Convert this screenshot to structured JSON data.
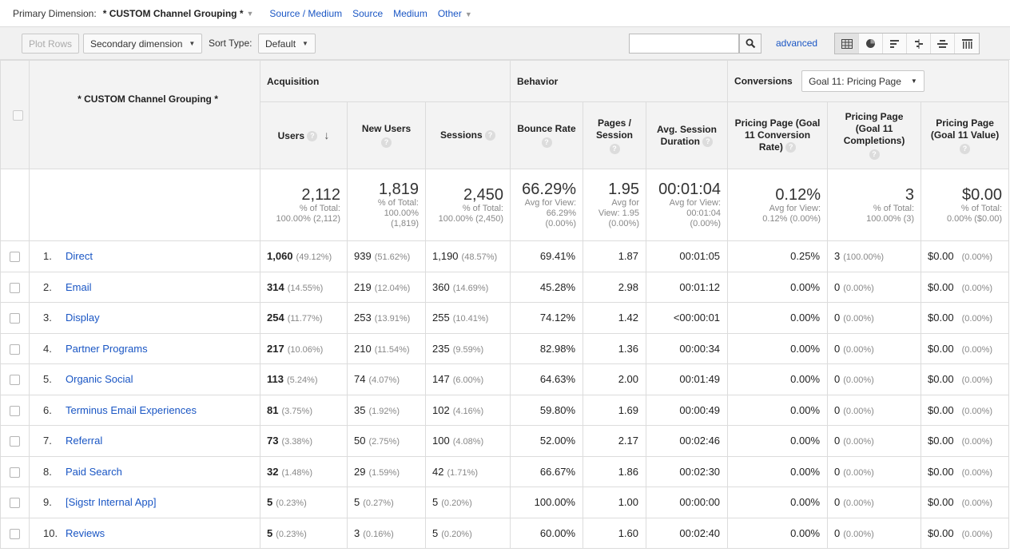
{
  "primary": {
    "label": "Primary Dimension:",
    "current": "* CUSTOM Channel Grouping *",
    "links": [
      "Source / Medium",
      "Source",
      "Medium",
      "Other"
    ]
  },
  "toolbar": {
    "plot_rows": "Plot Rows",
    "secondary_dimension": "Secondary dimension",
    "sort_type_label": "Sort Type:",
    "sort_type_value": "Default",
    "search_placeholder": "",
    "advanced": "advanced"
  },
  "table": {
    "dimension_header": "* CUSTOM Channel Grouping *",
    "groups": {
      "acquisition": "Acquisition",
      "behavior": "Behavior",
      "conversions": "Conversions",
      "goal_select": "Goal 11: Pricing Page"
    },
    "columns": [
      "Users",
      "New Users",
      "Sessions",
      "Bounce Rate",
      "Pages / Session",
      "Avg. Session Duration",
      "Pricing Page (Goal 11 Conversion Rate)",
      "Pricing Page (Goal 11 Completions)",
      "Pricing Page (Goal 11 Value)"
    ],
    "totals": [
      {
        "value": "2,112",
        "l1": "% of Total:",
        "l2": "100.00% (2,112)",
        "l3": ""
      },
      {
        "value": "1,819",
        "l1": "% of Total:",
        "l2": "100.00%",
        "l3": "(1,819)"
      },
      {
        "value": "2,450",
        "l1": "% of Total:",
        "l2": "100.00% (2,450)",
        "l3": ""
      },
      {
        "value": "66.29%",
        "l1": "Avg for View:",
        "l2": "66.29%",
        "l3": "(0.00%)"
      },
      {
        "value": "1.95",
        "l1": "Avg for",
        "l2": "View: 1.95",
        "l3": "(0.00%)"
      },
      {
        "value": "00:01:04",
        "l1": "Avg for View:",
        "l2": "00:01:04",
        "l3": "(0.00%)"
      },
      {
        "value": "0.12%",
        "l1": "Avg for View:",
        "l2": "0.12% (0.00%)",
        "l3": ""
      },
      {
        "value": "3",
        "l1": "% of Total:",
        "l2": "100.00% (3)",
        "l3": ""
      },
      {
        "value": "$0.00",
        "l1": "% of Total:",
        "l2": "0.00% ($0.00)",
        "l3": ""
      }
    ],
    "rows": [
      {
        "idx": "1.",
        "name": "Direct",
        "users": "1,060",
        "users_pct": "(49.12%)",
        "new_users": "939",
        "new_users_pct": "(51.62%)",
        "sessions": "1,190",
        "sessions_pct": "(48.57%)",
        "bounce": "69.41%",
        "pages": "1.87",
        "duration": "00:01:05",
        "conv_rate": "0.25%",
        "completions": "3",
        "completions_pct": "(100.00%)",
        "value": "$0.00",
        "value_pct": "(0.00%)"
      },
      {
        "idx": "2.",
        "name": "Email",
        "users": "314",
        "users_pct": "(14.55%)",
        "new_users": "219",
        "new_users_pct": "(12.04%)",
        "sessions": "360",
        "sessions_pct": "(14.69%)",
        "bounce": "45.28%",
        "pages": "2.98",
        "duration": "00:01:12",
        "conv_rate": "0.00%",
        "completions": "0",
        "completions_pct": "(0.00%)",
        "value": "$0.00",
        "value_pct": "(0.00%)"
      },
      {
        "idx": "3.",
        "name": "Display",
        "users": "254",
        "users_pct": "(11.77%)",
        "new_users": "253",
        "new_users_pct": "(13.91%)",
        "sessions": "255",
        "sessions_pct": "(10.41%)",
        "bounce": "74.12%",
        "pages": "1.42",
        "duration": "<00:00:01",
        "conv_rate": "0.00%",
        "completions": "0",
        "completions_pct": "(0.00%)",
        "value": "$0.00",
        "value_pct": "(0.00%)"
      },
      {
        "idx": "4.",
        "name": "Partner Programs",
        "users": "217",
        "users_pct": "(10.06%)",
        "new_users": "210",
        "new_users_pct": "(11.54%)",
        "sessions": "235",
        "sessions_pct": "(9.59%)",
        "bounce": "82.98%",
        "pages": "1.36",
        "duration": "00:00:34",
        "conv_rate": "0.00%",
        "completions": "0",
        "completions_pct": "(0.00%)",
        "value": "$0.00",
        "value_pct": "(0.00%)"
      },
      {
        "idx": "5.",
        "name": "Organic Social",
        "users": "113",
        "users_pct": "(5.24%)",
        "new_users": "74",
        "new_users_pct": "(4.07%)",
        "sessions": "147",
        "sessions_pct": "(6.00%)",
        "bounce": "64.63%",
        "pages": "2.00",
        "duration": "00:01:49",
        "conv_rate": "0.00%",
        "completions": "0",
        "completions_pct": "(0.00%)",
        "value": "$0.00",
        "value_pct": "(0.00%)"
      },
      {
        "idx": "6.",
        "name": "Terminus Email Experiences",
        "users": "81",
        "users_pct": "(3.75%)",
        "new_users": "35",
        "new_users_pct": "(1.92%)",
        "sessions": "102",
        "sessions_pct": "(4.16%)",
        "bounce": "59.80%",
        "pages": "1.69",
        "duration": "00:00:49",
        "conv_rate": "0.00%",
        "completions": "0",
        "completions_pct": "(0.00%)",
        "value": "$0.00",
        "value_pct": "(0.00%)"
      },
      {
        "idx": "7.",
        "name": "Referral",
        "users": "73",
        "users_pct": "(3.38%)",
        "new_users": "50",
        "new_users_pct": "(2.75%)",
        "sessions": "100",
        "sessions_pct": "(4.08%)",
        "bounce": "52.00%",
        "pages": "2.17",
        "duration": "00:02:46",
        "conv_rate": "0.00%",
        "completions": "0",
        "completions_pct": "(0.00%)",
        "value": "$0.00",
        "value_pct": "(0.00%)"
      },
      {
        "idx": "8.",
        "name": "Paid Search",
        "users": "32",
        "users_pct": "(1.48%)",
        "new_users": "29",
        "new_users_pct": "(1.59%)",
        "sessions": "42",
        "sessions_pct": "(1.71%)",
        "bounce": "66.67%",
        "pages": "1.86",
        "duration": "00:02:30",
        "conv_rate": "0.00%",
        "completions": "0",
        "completions_pct": "(0.00%)",
        "value": "$0.00",
        "value_pct": "(0.00%)"
      },
      {
        "idx": "9.",
        "name": "[Sigstr Internal App]",
        "users": "5",
        "users_pct": "(0.23%)",
        "new_users": "5",
        "new_users_pct": "(0.27%)",
        "sessions": "5",
        "sessions_pct": "(0.20%)",
        "bounce": "100.00%",
        "pages": "1.00",
        "duration": "00:00:00",
        "conv_rate": "0.00%",
        "completions": "0",
        "completions_pct": "(0.00%)",
        "value": "$0.00",
        "value_pct": "(0.00%)"
      },
      {
        "idx": "10.",
        "name": "Reviews",
        "users": "5",
        "users_pct": "(0.23%)",
        "new_users": "3",
        "new_users_pct": "(0.16%)",
        "sessions": "5",
        "sessions_pct": "(0.20%)",
        "bounce": "60.00%",
        "pages": "1.60",
        "duration": "00:02:40",
        "conv_rate": "0.00%",
        "completions": "0",
        "completions_pct": "(0.00%)",
        "value": "$0.00",
        "value_pct": "(0.00%)"
      }
    ]
  },
  "icons": {
    "search": "magnifier-icon",
    "views": [
      "table-view-icon",
      "pie-view-icon",
      "performance-view-icon",
      "comparison-view-icon",
      "term-cloud-view-icon",
      "pivot-view-icon"
    ],
    "help": "help-icon",
    "sort": "sort-descending-icon"
  },
  "colors": {
    "link": "#1a56c4",
    "header_bg": "#f3f3f3",
    "toolbar_bg": "#f1f1f1",
    "muted": "#888888"
  }
}
